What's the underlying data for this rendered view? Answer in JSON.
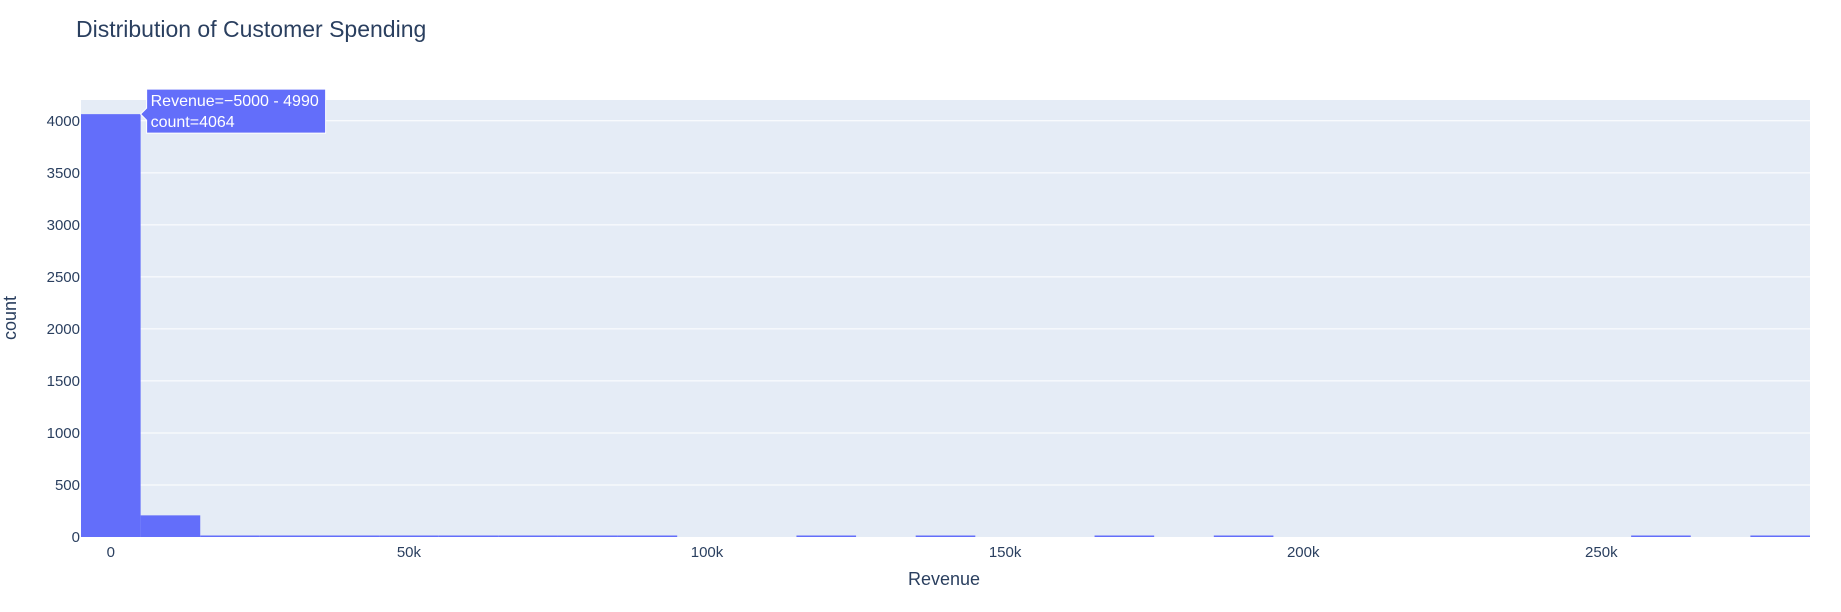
{
  "chart_data": {
    "type": "bar",
    "title": "Distribution of Customer Spending",
    "xlabel": "Revenue",
    "ylabel": "count",
    "xlim": [
      -5000,
      285000
    ],
    "ylim": [
      0,
      4200
    ],
    "bin_width": 10000,
    "x_ticks": [
      0,
      50000,
      100000,
      150000,
      200000,
      250000
    ],
    "x_tick_labels": [
      "0",
      "50k",
      "100k",
      "150k",
      "200k",
      "250k"
    ],
    "y_ticks": [
      0,
      500,
      1000,
      1500,
      2000,
      2500,
      3000,
      3500,
      4000
    ],
    "y_tick_labels": [
      "0",
      "500",
      "1000",
      "1500",
      "2000",
      "2500",
      "3000",
      "3500",
      "4000"
    ],
    "grid": true,
    "colors": {
      "bar": "#636efa",
      "plot_bg": "#e5ecf6",
      "grid": "#ffffff",
      "text": "#2a3f5f",
      "tooltip_bg": "#636efa",
      "tooltip_text": "#ffffff"
    },
    "bins": [
      {
        "x0": -5000,
        "x1": 5000,
        "count": 4064
      },
      {
        "x0": 5000,
        "x1": 15000,
        "count": 208
      },
      {
        "x0": 15000,
        "x1": 25000,
        "count": 12
      },
      {
        "x0": 25000,
        "x1": 35000,
        "count": 4
      },
      {
        "x0": 35000,
        "x1": 45000,
        "count": 3
      },
      {
        "x0": 45000,
        "x1": 55000,
        "count": 2
      },
      {
        "x0": 55000,
        "x1": 65000,
        "count": 1
      },
      {
        "x0": 65000,
        "x1": 75000,
        "count": 1
      },
      {
        "x0": 75000,
        "x1": 85000,
        "count": 1
      },
      {
        "x0": 85000,
        "x1": 95000,
        "count": 1
      },
      {
        "x0": 115000,
        "x1": 125000,
        "count": 1
      },
      {
        "x0": 135000,
        "x1": 145000,
        "count": 1
      },
      {
        "x0": 165000,
        "x1": 175000,
        "count": 1
      },
      {
        "x0": 185000,
        "x1": 195000,
        "count": 1
      },
      {
        "x0": 255000,
        "x1": 265000,
        "count": 1
      },
      {
        "x0": 275000,
        "x1": 285000,
        "count": 1
      }
    ],
    "hover": {
      "line1": "Revenue=−5000 - 4990",
      "line2": "count=4064",
      "bin_index": 0
    }
  }
}
